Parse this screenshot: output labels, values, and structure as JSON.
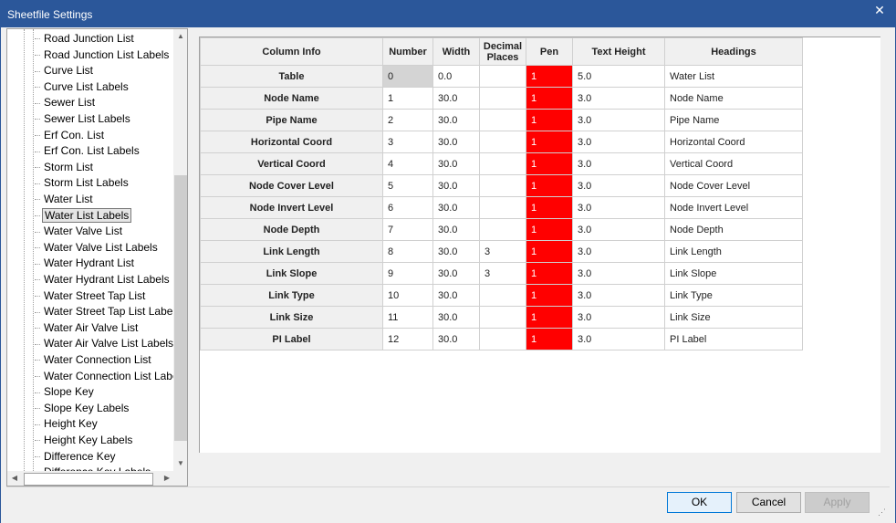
{
  "window": {
    "title": "Sheetfile Settings",
    "close_glyph": "✕"
  },
  "tree": {
    "items": [
      "Road Junction List",
      "Road Junction List Labels",
      "Curve List",
      "Curve List Labels",
      "Sewer List",
      "Sewer List Labels",
      "Erf Con. List",
      "Erf Con. List Labels",
      "Storm List",
      "Storm List Labels",
      "Water List",
      "Water List Labels",
      "Water Valve List",
      "Water Valve List Labels",
      "Water Hydrant List",
      "Water Hydrant List Labels",
      "Water Street Tap List",
      "Water Street Tap List Labels",
      "Water Air Valve List",
      "Water Air Valve List Labels",
      "Water Connection List",
      "Water Connection List Labels",
      "Slope Key",
      "Slope Key Labels",
      "Height Key",
      "Height Key Labels",
      "Difference Key",
      "Difference Key Labels"
    ],
    "selected": "Water List Labels"
  },
  "grid": {
    "columns": [
      "Column Info",
      "Number",
      "Width",
      "Decimal Places",
      "Pen",
      "Text Height",
      "Headings"
    ],
    "rows": [
      {
        "info": "Table",
        "number": "0",
        "width": "0.0",
        "decimals": "",
        "pen": "1",
        "text_height": "5.0",
        "heading": "Water List"
      },
      {
        "info": "Node Name",
        "number": "1",
        "width": "30.0",
        "decimals": "",
        "pen": "1",
        "text_height": "3.0",
        "heading": "Node Name"
      },
      {
        "info": "Pipe Name",
        "number": "2",
        "width": "30.0",
        "decimals": "",
        "pen": "1",
        "text_height": "3.0",
        "heading": "Pipe Name"
      },
      {
        "info": "Horizontal Coord",
        "number": "3",
        "width": "30.0",
        "decimals": "",
        "pen": "1",
        "text_height": "3.0",
        "heading": "Horizontal Coord"
      },
      {
        "info": "Vertical Coord",
        "number": "4",
        "width": "30.0",
        "decimals": "",
        "pen": "1",
        "text_height": "3.0",
        "heading": "Vertical Coord"
      },
      {
        "info": "Node Cover Level",
        "number": "5",
        "width": "30.0",
        "decimals": "",
        "pen": "1",
        "text_height": "3.0",
        "heading": "Node Cover Level"
      },
      {
        "info": "Node Invert Level",
        "number": "6",
        "width": "30.0",
        "decimals": "",
        "pen": "1",
        "text_height": "3.0",
        "heading": "Node Invert Level"
      },
      {
        "info": "Node Depth",
        "number": "7",
        "width": "30.0",
        "decimals": "",
        "pen": "1",
        "text_height": "3.0",
        "heading": "Node Depth"
      },
      {
        "info": "Link Length",
        "number": "8",
        "width": "30.0",
        "decimals": "3",
        "pen": "1",
        "text_height": "3.0",
        "heading": "Link Length"
      },
      {
        "info": "Link Slope",
        "number": "9",
        "width": "30.0",
        "decimals": "3",
        "pen": "1",
        "text_height": "3.0",
        "heading": "Link Slope"
      },
      {
        "info": "Link Type",
        "number": "10",
        "width": "30.0",
        "decimals": "",
        "pen": "1",
        "text_height": "3.0",
        "heading": "Link Type"
      },
      {
        "info": "Link Size",
        "number": "11",
        "width": "30.0",
        "decimals": "",
        "pen": "1",
        "text_height": "3.0",
        "heading": "Link Size"
      },
      {
        "info": "PI Label",
        "number": "12",
        "width": "30.0",
        "decimals": "",
        "pen": "1",
        "text_height": "3.0",
        "heading": "PI Label"
      }
    ],
    "pen_color": "#ff0000"
  },
  "buttons": {
    "ok": "OK",
    "cancel": "Cancel",
    "apply": "Apply"
  }
}
